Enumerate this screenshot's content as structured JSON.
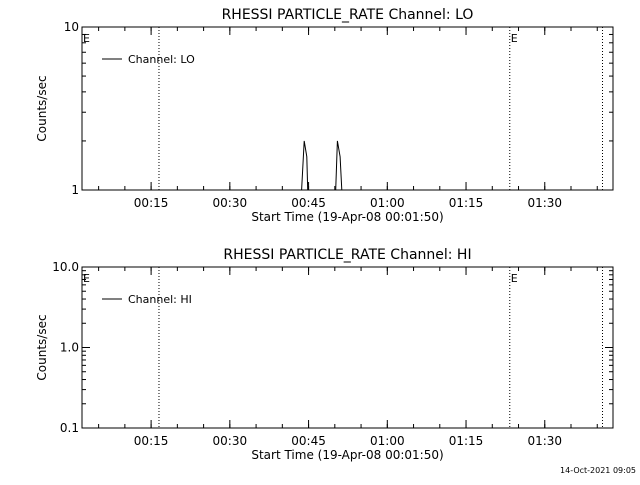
{
  "timestamp": "14-Oct-2021 09:05",
  "colors": {
    "background": "#ffffff",
    "foreground": "#000000"
  },
  "chart_data": [
    {
      "type": "line",
      "title": "RHESSI PARTICLE_RATE Channel: LO",
      "xlabel": "Start Time (19-Apr-08 00:01:50)",
      "ylabel": "Counts/sec",
      "y_scale": "log",
      "ylim": [
        1,
        10
      ],
      "y_ticks": [
        1,
        10
      ],
      "y_tick_labels": [
        "1",
        "10"
      ],
      "xlim": [
        "00:01:50",
        "01:43:00"
      ],
      "x_ticks": [
        "00:15",
        "00:30",
        "00:45",
        "01:00",
        "01:15",
        "01:30"
      ],
      "legend": {
        "position": "top-left",
        "entries": [
          "Channel: LO"
        ]
      },
      "vertical_lines": [
        {
          "x": "00:16:30",
          "label": ""
        },
        {
          "x": "01:23:20",
          "label": "E"
        },
        {
          "x": "01:41:00",
          "label": ""
        }
      ],
      "edge_markers": [
        {
          "x": "00:01:50",
          "label": "E"
        }
      ],
      "series": [
        {
          "name": "Channel: LO",
          "x": [
            "00:43:40",
            "00:44:10",
            "00:44:40",
            "00:44:50",
            "00:50:10",
            "00:50:30",
            "00:51:00",
            "00:51:20"
          ],
          "values": [
            1,
            2,
            1.6,
            1,
            1,
            2,
            1.6,
            1
          ]
        }
      ]
    },
    {
      "type": "line",
      "title": "RHESSI PARTICLE_RATE Channel: HI",
      "xlabel": "Start Time (19-Apr-08 00:01:50)",
      "ylabel": "Counts/sec",
      "y_scale": "log",
      "ylim": [
        0.1,
        10
      ],
      "y_ticks": [
        0.1,
        1,
        10
      ],
      "y_tick_labels": [
        "0.1",
        "1.0",
        "10.0"
      ],
      "xlim": [
        "00:01:50",
        "01:43:00"
      ],
      "x_ticks": [
        "00:15",
        "00:30",
        "00:45",
        "01:00",
        "01:15",
        "01:30"
      ],
      "legend": {
        "position": "top-left",
        "entries": [
          "Channel: HI"
        ]
      },
      "vertical_lines": [
        {
          "x": "00:16:30",
          "label": ""
        },
        {
          "x": "01:23:20",
          "label": "E"
        },
        {
          "x": "01:41:00",
          "label": ""
        }
      ],
      "edge_markers": [
        {
          "x": "00:01:50",
          "label": "E"
        }
      ],
      "series": [
        {
          "name": "Channel: HI",
          "x": [],
          "values": []
        }
      ]
    }
  ]
}
